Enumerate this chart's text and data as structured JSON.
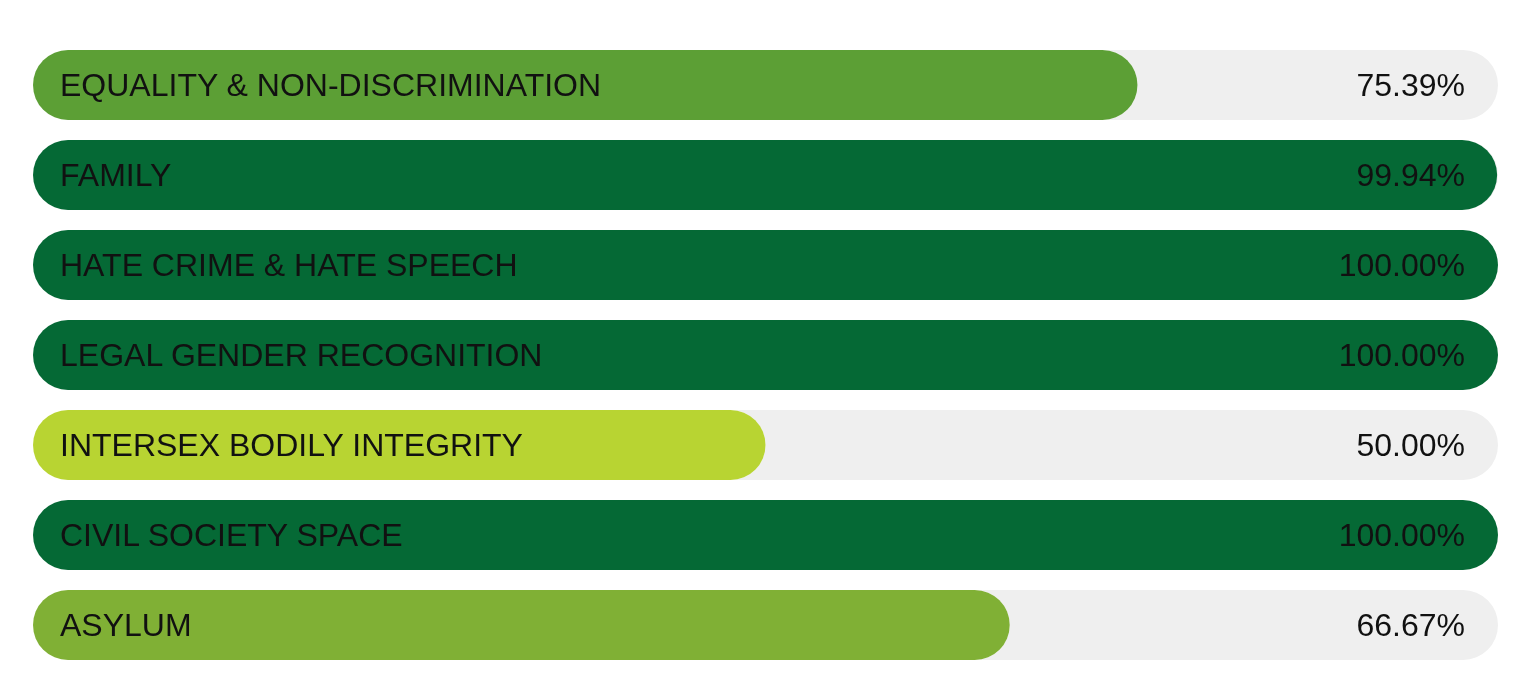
{
  "chart_data": {
    "type": "bar",
    "orientation": "horizontal",
    "categories": [
      "EQUALITY & NON-DISCRIMINATION",
      "FAMILY",
      "HATE CRIME & HATE SPEECH",
      "LEGAL GENDER RECOGNITION",
      "INTERSEX BODILY INTEGRITY",
      "CIVIL SOCIETY SPACE",
      "ASYLUM"
    ],
    "values": [
      75.39,
      99.94,
      100,
      100,
      50,
      100,
      66.67
    ],
    "colors": [
      "#5c9f35",
      "#056935",
      "#056935",
      "#056935",
      "#b8d432",
      "#056935",
      "#80b035"
    ],
    "value_labels": [
      "75.39%",
      "99.94%",
      "100.00%",
      "100.00%",
      "50.00%",
      "100.00%",
      "66.67%"
    ],
    "xlim": [
      0,
      100
    ],
    "tick_labels": false
  }
}
